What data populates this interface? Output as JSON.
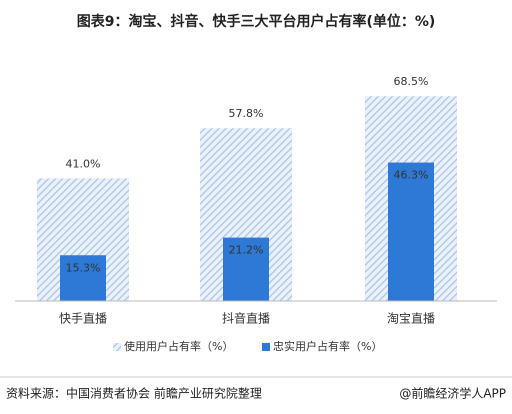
{
  "chart_data": {
    "type": "bar",
    "title": "图表9：淘宝、抖音、快手三大平台用户占有率(单位：%)",
    "categories": [
      "快手直播",
      "抖音直播",
      "淘宝直播"
    ],
    "series": [
      {
        "name": "使用用户占有率（%）",
        "color": "#a9c4e8",
        "values": [
          41.0,
          57.8,
          68.5
        ],
        "value_labels": [
          "41.0%",
          "57.8%",
          "68.5%"
        ]
      },
      {
        "name": "忠实用户占有率（%）",
        "color": "#2e78d6",
        "values": [
          15.3,
          21.2,
          46.3
        ],
        "value_labels": [
          "15.3%",
          "21.2%",
          "46.3%"
        ]
      }
    ],
    "source": "资料来源：中国消费者协会 前瞻产业研究院整理",
    "credit": "@前瞻经济学人APP"
  }
}
